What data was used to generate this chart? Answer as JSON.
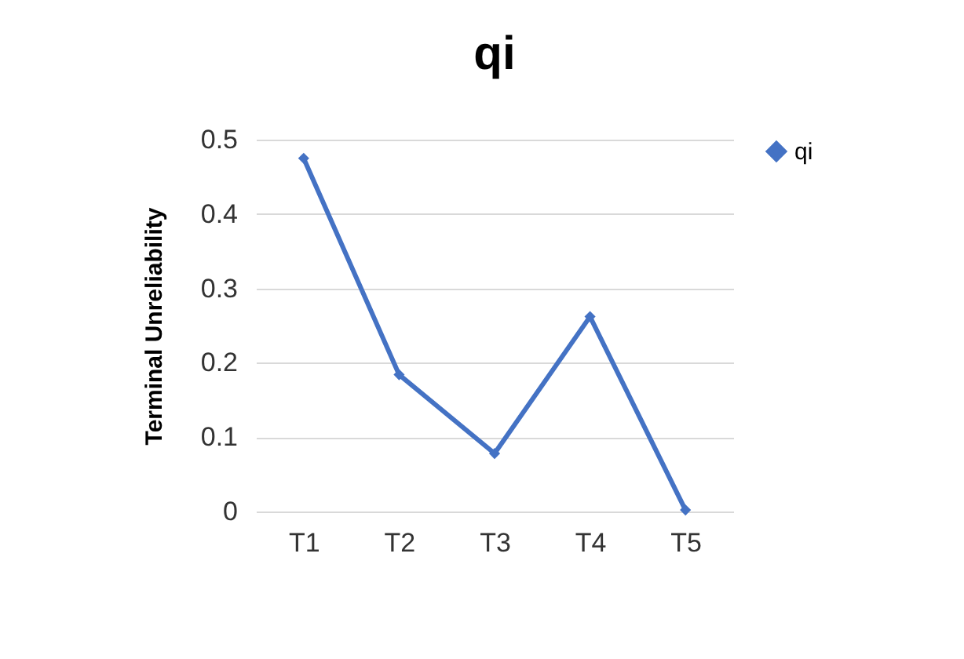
{
  "chart_data": {
    "type": "line",
    "title": "qi",
    "ylabel": "Terminal Unreliability",
    "categories": [
      "T1",
      "T2",
      "T3",
      "T4",
      "T5"
    ],
    "series": [
      {
        "name": "qi",
        "color": "#4472c4",
        "values": [
          0.475,
          0.184,
          0.078,
          0.262,
          0.002
        ]
      }
    ],
    "ylim": [
      0,
      0.5
    ],
    "yticks": [
      0,
      0.1,
      0.2,
      0.3,
      0.4,
      0.5
    ],
    "grid": "y",
    "legend": "right",
    "marker": "diamond",
    "line_style": "solid"
  }
}
